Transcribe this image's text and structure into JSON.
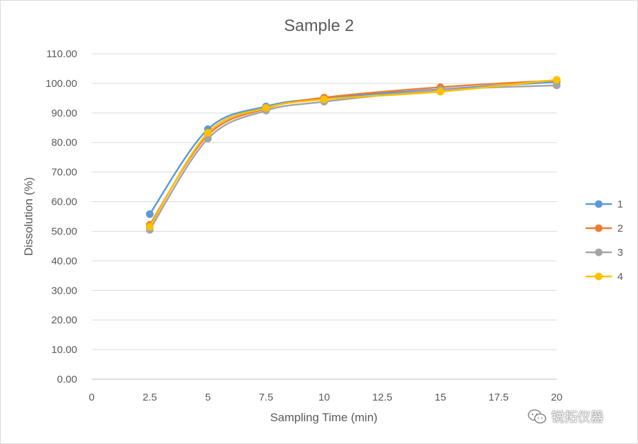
{
  "chart_data": {
    "type": "line",
    "title": "Sample 2",
    "xlabel": "Sampling Time (min)",
    "ylabel": "Dissolution (%)",
    "xlim": [
      0,
      20
    ],
    "ylim": [
      0,
      110
    ],
    "x_ticks": [
      "0",
      "2.5",
      "5",
      "7.5",
      "10",
      "12.5",
      "15",
      "17.5",
      "20"
    ],
    "y_ticks": [
      "0.00",
      "10.00",
      "20.00",
      "30.00",
      "40.00",
      "50.00",
      "60.00",
      "70.00",
      "80.00",
      "90.00",
      "100.00",
      "110.00"
    ],
    "grid": "horizontal",
    "legend_position": "right",
    "smooth": true,
    "x": [
      2.5,
      5,
      7.5,
      10,
      15,
      20
    ],
    "series": [
      {
        "name": "1",
        "color": "#5b9bd5",
        "values": [
          55.8,
          84.5,
          92.2,
          95.0,
          98.0,
          100.5
        ]
      },
      {
        "name": "2",
        "color": "#ed7d31",
        "values": [
          52.2,
          82.5,
          91.5,
          95.2,
          98.7,
          101.0
        ]
      },
      {
        "name": "3",
        "color": "#a5a5a5",
        "values": [
          50.5,
          81.3,
          90.8,
          93.8,
          97.8,
          99.3
        ]
      },
      {
        "name": "4",
        "color": "#ffc000",
        "values": [
          51.5,
          83.3,
          91.7,
          94.6,
          97.2,
          101.2
        ]
      }
    ]
  },
  "watermark": {
    "icon": "wechat-icon",
    "text": "锐拓仪器"
  }
}
